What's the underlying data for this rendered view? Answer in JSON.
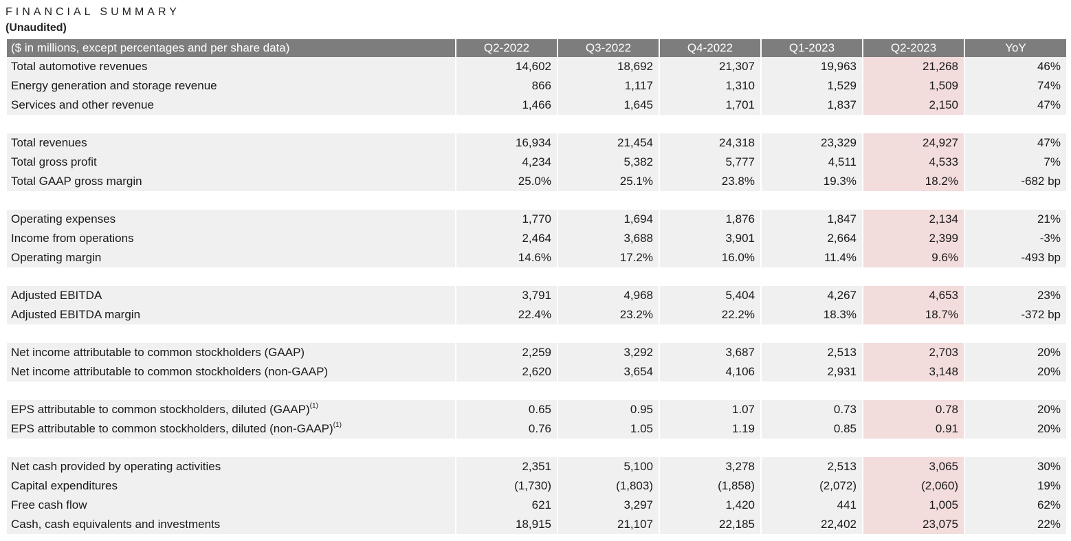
{
  "document": {
    "title": "FINANCIAL SUMMARY",
    "subtitle": "(Unaudited)"
  },
  "table": {
    "header": {
      "label": "($ in millions, except percentages and per share data)",
      "columns": [
        "Q2-2022",
        "Q3-2022",
        "Q4-2022",
        "Q1-2023",
        "Q2-2023",
        "YoY"
      ]
    },
    "groups": [
      {
        "rows": [
          {
            "label": "Total automotive revenues",
            "values": [
              "14,602",
              "18,692",
              "21,307",
              "19,963",
              "21,268",
              "46%"
            ]
          },
          {
            "label": "Energy generation and storage revenue",
            "values": [
              "866",
              "1,117",
              "1,310",
              "1,529",
              "1,509",
              "74%"
            ]
          },
          {
            "label": "Services and other revenue",
            "values": [
              "1,466",
              "1,645",
              "1,701",
              "1,837",
              "2,150",
              "47%"
            ]
          }
        ]
      },
      {
        "rows": [
          {
            "label": "Total revenues",
            "values": [
              "16,934",
              "21,454",
              "24,318",
              "23,329",
              "24,927",
              "47%"
            ]
          },
          {
            "label": "Total gross profit",
            "values": [
              "4,234",
              "5,382",
              "5,777",
              "4,511",
              "4,533",
              "7%"
            ]
          },
          {
            "label": "Total GAAP gross margin",
            "values": [
              "25.0%",
              "25.1%",
              "23.8%",
              "19.3%",
              "18.2%",
              "-682 bp"
            ]
          }
        ]
      },
      {
        "rows": [
          {
            "label": "Operating expenses",
            "values": [
              "1,770",
              "1,694",
              "1,876",
              "1,847",
              "2,134",
              "21%"
            ]
          },
          {
            "label": "Income from operations",
            "values": [
              "2,464",
              "3,688",
              "3,901",
              "2,664",
              "2,399",
              "-3%"
            ]
          },
          {
            "label": "Operating margin",
            "values": [
              "14.6%",
              "17.2%",
              "16.0%",
              "11.4%",
              "9.6%",
              "-493 bp"
            ]
          }
        ]
      },
      {
        "rows": [
          {
            "label": "Adjusted EBITDA",
            "values": [
              "3,791",
              "4,968",
              "5,404",
              "4,267",
              "4,653",
              "23%"
            ]
          },
          {
            "label": "Adjusted EBITDA margin",
            "values": [
              "22.4%",
              "23.2%",
              "22.2%",
              "18.3%",
              "18.7%",
              "-372 bp"
            ]
          }
        ]
      },
      {
        "rows": [
          {
            "label": "Net income attributable to common stockholders (GAAP)",
            "values": [
              "2,259",
              "3,292",
              "3,687",
              "2,513",
              "2,703",
              "20%"
            ]
          },
          {
            "label": "Net income attributable to common stockholders (non-GAAP)",
            "values": [
              "2,620",
              "3,654",
              "4,106",
              "2,931",
              "3,148",
              "20%"
            ]
          }
        ]
      },
      {
        "rows": [
          {
            "label": "EPS attributable to common stockholders, diluted (GAAP)",
            "sup": "(1)",
            "values": [
              "0.65",
              "0.95",
              "1.07",
              "0.73",
              "0.78",
              "20%"
            ]
          },
          {
            "label": "EPS attributable to common stockholders, diluted (non-GAAP)",
            "sup": "(1)",
            "values": [
              "0.76",
              "1.05",
              "1.19",
              "0.85",
              "0.91",
              "20%"
            ]
          }
        ]
      },
      {
        "rows": [
          {
            "label": "Net cash provided by operating activities",
            "values": [
              "2,351",
              "5,100",
              "3,278",
              "2,513",
              "3,065",
              "30%"
            ]
          },
          {
            "label": "Capital expenditures",
            "values": [
              "(1,730)",
              "(1,803)",
              "(1,858)",
              "(2,072)",
              "(2,060)",
              "19%"
            ]
          },
          {
            "label": "Free cash flow",
            "values": [
              "621",
              "3,297",
              "1,420",
              "441",
              "1,005",
              "62%"
            ]
          },
          {
            "label": "Cash, cash equivalents and investments",
            "values": [
              "18,915",
              "21,107",
              "22,185",
              "22,402",
              "23,075",
              "22%"
            ]
          }
        ]
      }
    ]
  },
  "colors": {
    "header_bg": "#7d7d7d",
    "row_bg": "#f0f0f0",
    "highlight_bg": "#f3dcdc"
  }
}
